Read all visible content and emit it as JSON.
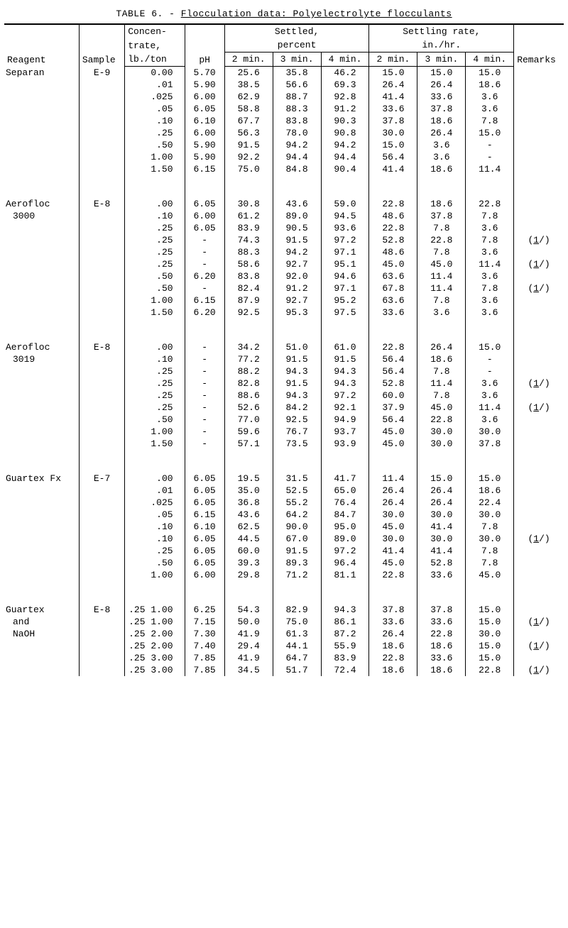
{
  "title_prefix": "TABLE 6. - ",
  "title_underlined": "Flocculation data:  Polyelectrolyte flocculants",
  "headers": {
    "reagent": "Reagent",
    "sample": "Sample",
    "conc_line1": "Concen-",
    "conc_line2": "trate,",
    "conc_line3": "lb./ton",
    "ph": "pH",
    "settled_group": "Settled,",
    "settled_group2": "percent",
    "rate_group": "Settling rate,",
    "rate_group2": "in./hr.",
    "min2": "2 min.",
    "min3": "3 min.",
    "min4": "4 min.",
    "remarks": "Remarks"
  },
  "footnote_marker": "(1/)",
  "groups": [
    {
      "reagent_lines": [
        "Separan"
      ],
      "sample": "E-9",
      "rows": [
        {
          "conc": "0.00",
          "ph": "5.70",
          "s2": "25.6",
          "s3": "35.8",
          "s4": "46.2",
          "r2": "15.0",
          "r3": "15.0",
          "r4": "15.0",
          "rem": ""
        },
        {
          "conc": ".01",
          "ph": "5.90",
          "s2": "38.5",
          "s3": "56.6",
          "s4": "69.3",
          "r2": "26.4",
          "r3": "26.4",
          "r4": "18.6",
          "rem": ""
        },
        {
          "conc": ".025",
          "ph": "6.00",
          "s2": "62.9",
          "s3": "88.7",
          "s4": "92.8",
          "r2": "41.4",
          "r3": "33.6",
          "r4": "3.6",
          "rem": ""
        },
        {
          "conc": ".05",
          "ph": "6.05",
          "s2": "58.8",
          "s3": "88.3",
          "s4": "91.2",
          "r2": "33.6",
          "r3": "37.8",
          "r4": "3.6",
          "rem": ""
        },
        {
          "conc": ".10",
          "ph": "6.10",
          "s2": "67.7",
          "s3": "83.8",
          "s4": "90.3",
          "r2": "37.8",
          "r3": "18.6",
          "r4": "7.8",
          "rem": ""
        },
        {
          "conc": ".25",
          "ph": "6.00",
          "s2": "56.3",
          "s3": "78.0",
          "s4": "90.8",
          "r2": "30.0",
          "r3": "26.4",
          "r4": "15.0",
          "rem": ""
        },
        {
          "conc": ".50",
          "ph": "5.90",
          "s2": "91.5",
          "s3": "94.2",
          "s4": "94.2",
          "r2": "15.0",
          "r3": "3.6",
          "r4": "-",
          "rem": ""
        },
        {
          "conc": "1.00",
          "ph": "5.90",
          "s2": "92.2",
          "s3": "94.4",
          "s4": "94.4",
          "r2": "56.4",
          "r3": "3.6",
          "r4": "-",
          "rem": ""
        },
        {
          "conc": "1.50",
          "ph": "6.15",
          "s2": "75.0",
          "s3": "84.8",
          "s4": "90.4",
          "r2": "41.4",
          "r3": "18.6",
          "r4": "11.4",
          "rem": ""
        }
      ]
    },
    {
      "reagent_lines": [
        "Aerofloc",
        "3000"
      ],
      "sample": "E-8",
      "rows": [
        {
          "conc": ".00",
          "ph": "6.05",
          "s2": "30.8",
          "s3": "43.6",
          "s4": "59.0",
          "r2": "22.8",
          "r3": "18.6",
          "r4": "22.8",
          "rem": ""
        },
        {
          "conc": ".10",
          "ph": "6.00",
          "s2": "61.2",
          "s3": "89.0",
          "s4": "94.5",
          "r2": "48.6",
          "r3": "37.8",
          "r4": "7.8",
          "rem": ""
        },
        {
          "conc": ".25",
          "ph": "6.05",
          "s2": "83.9",
          "s3": "90.5",
          "s4": "93.6",
          "r2": "22.8",
          "r3": "7.8",
          "r4": "3.6",
          "rem": ""
        },
        {
          "conc": ".25",
          "ph": "-",
          "s2": "74.3",
          "s3": "91.5",
          "s4": "97.2",
          "r2": "52.8",
          "r3": "22.8",
          "r4": "7.8",
          "rem": "fn"
        },
        {
          "conc": ".25",
          "ph": "-",
          "s2": "88.3",
          "s3": "94.2",
          "s4": "97.1",
          "r2": "48.6",
          "r3": "7.8",
          "r4": "3.6",
          "rem": ""
        },
        {
          "conc": ".25",
          "ph": "-",
          "s2": "58.6",
          "s3": "92.7",
          "s4": "95.1",
          "r2": "45.0",
          "r3": "45.0",
          "r4": "11.4",
          "rem": "fn"
        },
        {
          "conc": ".50",
          "ph": "6.20",
          "s2": "83.8",
          "s3": "92.0",
          "s4": "94.6",
          "r2": "63.6",
          "r3": "11.4",
          "r4": "3.6",
          "rem": ""
        },
        {
          "conc": ".50",
          "ph": "-",
          "s2": "82.4",
          "s3": "91.2",
          "s4": "97.1",
          "r2": "67.8",
          "r3": "11.4",
          "r4": "7.8",
          "rem": "fn"
        },
        {
          "conc": "1.00",
          "ph": "6.15",
          "s2": "87.9",
          "s3": "92.7",
          "s4": "95.2",
          "r2": "63.6",
          "r3": "7.8",
          "r4": "3.6",
          "rem": ""
        },
        {
          "conc": "1.50",
          "ph": "6.20",
          "s2": "92.5",
          "s3": "95.3",
          "s4": "97.5",
          "r2": "33.6",
          "r3": "3.6",
          "r4": "3.6",
          "rem": ""
        }
      ]
    },
    {
      "reagent_lines": [
        "Aerofloc",
        "3019"
      ],
      "sample": "E-8",
      "rows": [
        {
          "conc": ".00",
          "ph": "-",
          "s2": "34.2",
          "s3": "51.0",
          "s4": "61.0",
          "r2": "22.8",
          "r3": "26.4",
          "r4": "15.0",
          "rem": ""
        },
        {
          "conc": ".10",
          "ph": "-",
          "s2": "77.2",
          "s3": "91.5",
          "s4": "91.5",
          "r2": "56.4",
          "r3": "18.6",
          "r4": "-",
          "rem": ""
        },
        {
          "conc": ".25",
          "ph": "-",
          "s2": "88.2",
          "s3": "94.3",
          "s4": "94.3",
          "r2": "56.4",
          "r3": "7.8",
          "r4": "-",
          "rem": ""
        },
        {
          "conc": ".25",
          "ph": "-",
          "s2": "82.8",
          "s3": "91.5",
          "s4": "94.3",
          "r2": "52.8",
          "r3": "11.4",
          "r4": "3.6",
          "rem": "fn"
        },
        {
          "conc": ".25",
          "ph": "-",
          "s2": "88.6",
          "s3": "94.3",
          "s4": "97.2",
          "r2": "60.0",
          "r3": "7.8",
          "r4": "3.6",
          "rem": ""
        },
        {
          "conc": ".25",
          "ph": "-",
          "s2": "52.6",
          "s3": "84.2",
          "s4": "92.1",
          "r2": "37.9",
          "r3": "45.0",
          "r4": "11.4",
          "rem": "fn"
        },
        {
          "conc": ".50",
          "ph": "-",
          "s2": "77.0",
          "s3": "92.5",
          "s4": "94.9",
          "r2": "56.4",
          "r3": "22.8",
          "r4": "3.6",
          "rem": ""
        },
        {
          "conc": "1.00",
          "ph": "-",
          "s2": "59.6",
          "s3": "76.7",
          "s4": "93.7",
          "r2": "45.0",
          "r3": "30.0",
          "r4": "30.0",
          "rem": ""
        },
        {
          "conc": "1.50",
          "ph": "-",
          "s2": "57.1",
          "s3": "73.5",
          "s4": "93.9",
          "r2": "45.0",
          "r3": "30.0",
          "r4": "37.8",
          "rem": ""
        }
      ]
    },
    {
      "reagent_lines": [
        "Guartex Fx"
      ],
      "sample": "E-7",
      "rows": [
        {
          "conc": ".00",
          "ph": "6.05",
          "s2": "19.5",
          "s3": "31.5",
          "s4": "41.7",
          "r2": "11.4",
          "r3": "15.0",
          "r4": "15.0",
          "rem": ""
        },
        {
          "conc": ".01",
          "ph": "6.05",
          "s2": "35.0",
          "s3": "52.5",
          "s4": "65.0",
          "r2": "26.4",
          "r3": "26.4",
          "r4": "18.6",
          "rem": ""
        },
        {
          "conc": ".025",
          "ph": "6.05",
          "s2": "36.8",
          "s3": "55.2",
          "s4": "76.4",
          "r2": "26.4",
          "r3": "26.4",
          "r4": "22.4",
          "rem": ""
        },
        {
          "conc": ".05",
          "ph": "6.15",
          "s2": "43.6",
          "s3": "64.2",
          "s4": "84.7",
          "r2": "30.0",
          "r3": "30.0",
          "r4": "30.0",
          "rem": ""
        },
        {
          "conc": ".10",
          "ph": "6.10",
          "s2": "62.5",
          "s3": "90.0",
          "s4": "95.0",
          "r2": "45.0",
          "r3": "41.4",
          "r4": "7.8",
          "rem": ""
        },
        {
          "conc": ".10",
          "ph": "6.05",
          "s2": "44.5",
          "s3": "67.0",
          "s4": "89.0",
          "r2": "30.0",
          "r3": "30.0",
          "r4": "30.0",
          "rem": "fn"
        },
        {
          "conc": ".25",
          "ph": "6.05",
          "s2": "60.0",
          "s3": "91.5",
          "s4": "97.2",
          "r2": "41.4",
          "r3": "41.4",
          "r4": "7.8",
          "rem": ""
        },
        {
          "conc": ".50",
          "ph": "6.05",
          "s2": "39.3",
          "s3": "89.3",
          "s4": "96.4",
          "r2": "45.0",
          "r3": "52.8",
          "r4": "7.8",
          "rem": ""
        },
        {
          "conc": "1.00",
          "ph": "6.00",
          "s2": "29.8",
          "s3": "71.2",
          "s4": "81.1",
          "r2": "22.8",
          "r3": "33.6",
          "r4": "45.0",
          "rem": ""
        }
      ]
    },
    {
      "reagent_lines": [
        "Guartex",
        "and",
        "NaOH"
      ],
      "sample": "E-8",
      "rows": [
        {
          "conc": ".25 1.00",
          "ph": "6.25",
          "s2": "54.3",
          "s3": "82.9",
          "s4": "94.3",
          "r2": "37.8",
          "r3": "37.8",
          "r4": "15.0",
          "rem": ""
        },
        {
          "conc": ".25 1.00",
          "ph": "7.15",
          "s2": "50.0",
          "s3": "75.0",
          "s4": "86.1",
          "r2": "33.6",
          "r3": "33.6",
          "r4": "15.0",
          "rem": "fn"
        },
        {
          "conc": ".25 2.00",
          "ph": "7.30",
          "s2": "41.9",
          "s3": "61.3",
          "s4": "87.2",
          "r2": "26.4",
          "r3": "22.8",
          "r4": "30.0",
          "rem": ""
        },
        {
          "conc": ".25 2.00",
          "ph": "7.40",
          "s2": "29.4",
          "s3": "44.1",
          "s4": "55.9",
          "r2": "18.6",
          "r3": "18.6",
          "r4": "15.0",
          "rem": "fn"
        },
        {
          "conc": ".25 3.00",
          "ph": "7.85",
          "s2": "41.9",
          "s3": "64.7",
          "s4": "83.9",
          "r2": "22.8",
          "r3": "33.6",
          "r4": "15.0",
          "rem": ""
        },
        {
          "conc": ".25 3.00",
          "ph": "7.85",
          "s2": "34.5",
          "s3": "51.7",
          "s4": "72.4",
          "r2": "18.6",
          "r3": "18.6",
          "r4": "22.8",
          "rem": "fn"
        }
      ]
    }
  ]
}
